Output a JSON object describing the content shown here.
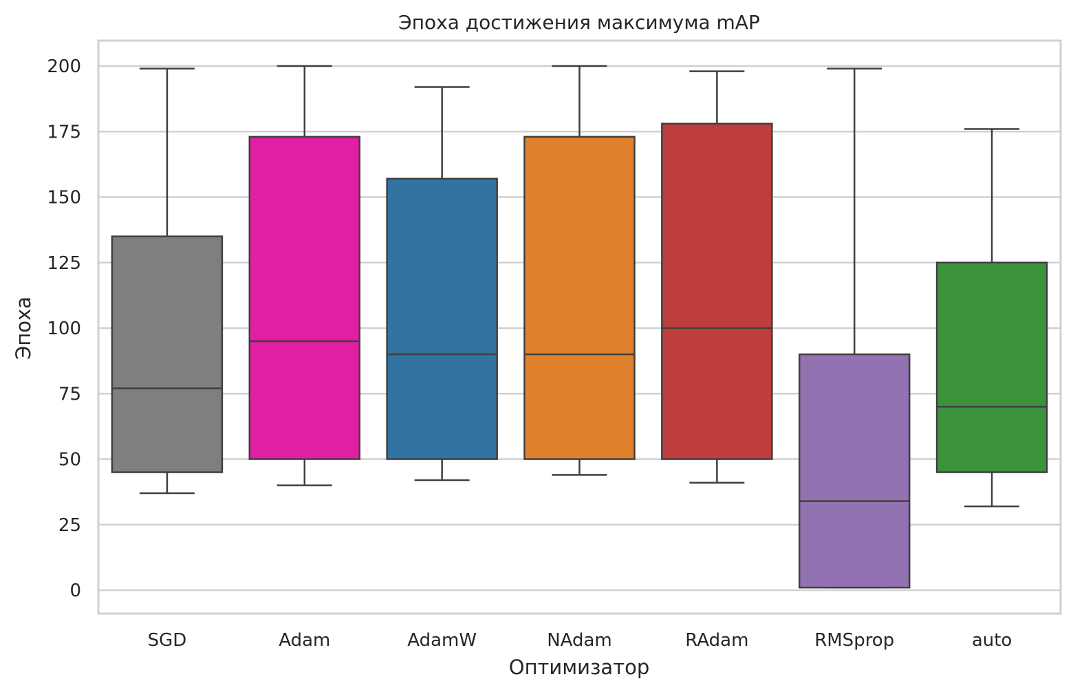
{
  "chart_data": {
    "type": "boxplot",
    "title": "Эпоха достижения максимума mAP",
    "xlabel": "Оптимизатор",
    "ylabel": "Эпоха",
    "ylim": [
      -9,
      210
    ],
    "yticks": [
      0,
      25,
      50,
      75,
      100,
      125,
      150,
      175,
      200
    ],
    "ytick_labels": [
      "0",
      "25",
      "50",
      "75",
      "100",
      "125",
      "150",
      "175",
      "200"
    ],
    "grid": true,
    "legend": null,
    "categories": [
      "SGD",
      "Adam",
      "AdamW",
      "NAdam",
      "RAdam",
      "RMSprop",
      "auto"
    ],
    "series": [
      {
        "name": "SGD",
        "color": "#7f7f7f",
        "whisker_low": 37,
        "q1": 45,
        "median": 77,
        "q3": 135,
        "whisker_high": 199
      },
      {
        "name": "Adam",
        "color": "#e01fa3",
        "whisker_low": 40,
        "q1": 50,
        "median": 95,
        "q3": 173,
        "whisker_high": 200
      },
      {
        "name": "AdamW",
        "color": "#3274a1",
        "whisker_low": 42,
        "q1": 50,
        "median": 90,
        "q3": 157,
        "whisker_high": 192
      },
      {
        "name": "NAdam",
        "color": "#e1812c",
        "whisker_low": 44,
        "q1": 50,
        "median": 90,
        "q3": 173,
        "whisker_high": 200
      },
      {
        "name": "RAdam",
        "color": "#c03d3e",
        "whisker_low": 41,
        "q1": 50,
        "median": 100,
        "q3": 178,
        "whisker_high": 198
      },
      {
        "name": "RMSprop",
        "color": "#9372b2",
        "whisker_low": 1,
        "q1": 1,
        "median": 34,
        "q3": 90,
        "whisker_high": 199
      },
      {
        "name": "auto",
        "color": "#3a923a",
        "whisker_low": 32,
        "q1": 45,
        "median": 70,
        "q3": 125,
        "whisker_high": 176
      }
    ]
  },
  "style": {
    "grid_color": "#d0d0d0",
    "frame_color": "#d0d0d0",
    "line_color": "#3f3f3f",
    "background": "#ffffff"
  }
}
